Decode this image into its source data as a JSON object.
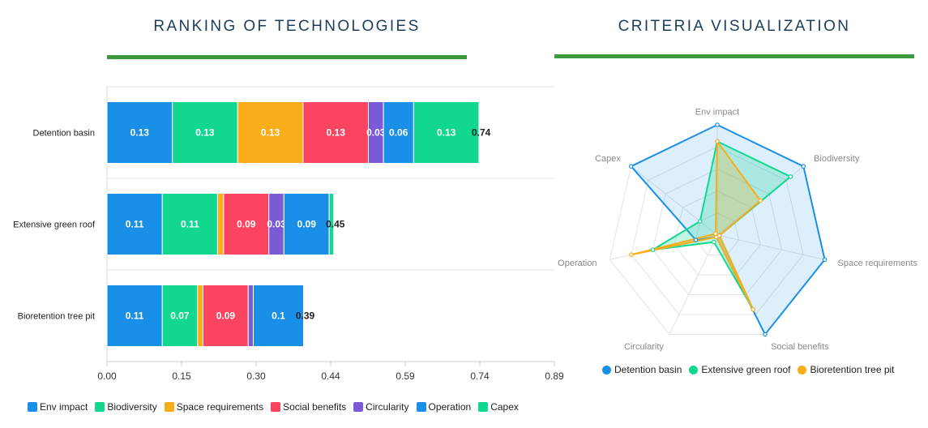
{
  "titles": {
    "left": "RANKING OF TECHNOLOGIES",
    "right": "CRITERIA VISUALIZATION"
  },
  "colors": {
    "rule": "#3c9a3c",
    "title": "#1a3d5c"
  },
  "chart_data": [
    {
      "type": "bar",
      "orientation": "horizontal",
      "stacked": true,
      "categories": [
        "Detention basin",
        "Extensive green roof",
        "Bioretention tree pit"
      ],
      "xlim": [
        0,
        0.89
      ],
      "xticks": [
        "0.00",
        "0.15",
        "0.30",
        "0.44",
        "0.59",
        "0.74",
        "0.89"
      ],
      "series": [
        {
          "name": "Env impact",
          "color": "#1a8fe8",
          "values": [
            0.13,
            0.11,
            0.11
          ],
          "labels": [
            "0.13",
            "0.11",
            "0.11"
          ]
        },
        {
          "name": "Biodiversity",
          "color": "#12d88f",
          "values": [
            0.13,
            0.11,
            0.07
          ],
          "labels": [
            "0.13",
            "0.11",
            "0.07"
          ]
        },
        {
          "name": "Space requirements",
          "color": "#faad1a",
          "values": [
            0.13,
            0.012,
            0.011
          ],
          "labels": [
            "0.13",
            "",
            ""
          ]
        },
        {
          "name": "Social benefits",
          "color": "#fb4560",
          "values": [
            0.13,
            0.09,
            0.09
          ],
          "labels": [
            "0.13",
            "0.09",
            "0.09"
          ]
        },
        {
          "name": "Circularity",
          "color": "#7b5ad6",
          "values": [
            0.03,
            0.03,
            0.01
          ],
          "labels": [
            "0.03",
            "0.03",
            ""
          ]
        },
        {
          "name": "Operation",
          "color": "#1a8fe8",
          "values": [
            0.06,
            0.09,
            0.1
          ],
          "labels": [
            "0.06",
            "0.09",
            "0.1"
          ]
        },
        {
          "name": "Capex",
          "color": "#12d88f",
          "values": [
            0.13,
            0.009,
            0
          ],
          "labels": [
            "0.13",
            "",
            ""
          ]
        }
      ],
      "totals": [
        "0.74",
        "0.45",
        "0.39"
      ],
      "total_values": [
        0.74,
        0.45,
        0.39
      ],
      "legend": "bottom-left"
    },
    {
      "type": "radar",
      "axes": [
        "Env impact",
        "Biodiversity",
        "Space requirements",
        "Social benefits",
        "Circularity",
        "Operation",
        "Capex"
      ],
      "rmax": 1,
      "series": [
        {
          "name": "Detention basin",
          "color": "#1a8fe8",
          "values": [
            1.0,
            1.0,
            1.0,
            1.0,
            0.02,
            0.2,
            1.0
          ]
        },
        {
          "name": "Extensive green roof",
          "color": "#12d88f",
          "values": [
            0.85,
            0.85,
            0.02,
            0.75,
            0.07,
            0.6,
            0.2
          ]
        },
        {
          "name": "Bioretention tree pit",
          "color": "#faad1a",
          "values": [
            0.85,
            0.5,
            0.02,
            0.75,
            0.02,
            0.8,
            0.02
          ]
        }
      ],
      "legend": "bottom"
    }
  ]
}
